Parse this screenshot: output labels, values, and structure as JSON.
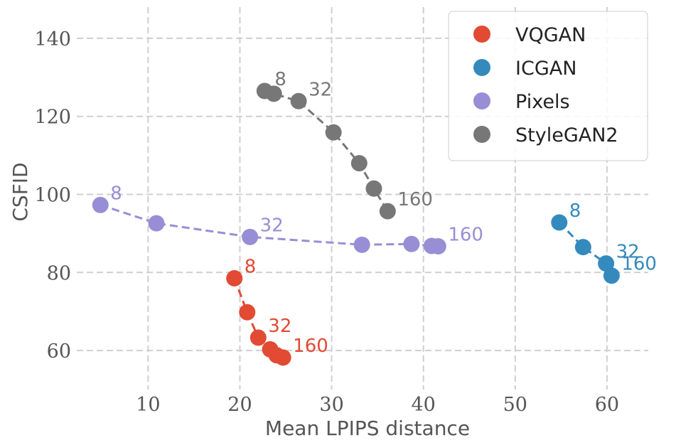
{
  "chart_data": {
    "type": "scatter",
    "title": "",
    "xlabel": "Mean LPIPS distance",
    "ylabel": "CSFID",
    "xlim": [
      3,
      64.5
    ],
    "ylim": [
      50,
      148
    ],
    "xticks": [
      10,
      20,
      30,
      40,
      50,
      60
    ],
    "yticks": [
      60,
      80,
      100,
      120,
      140
    ],
    "grid": true,
    "grid_style": "dashed",
    "legend_position": "top-right",
    "series": [
      {
        "name": "VQGAN",
        "color": "#E24A33",
        "x": [
          19.4,
          20.8,
          22.0,
          23.3,
          24.0,
          24.7
        ],
        "y": [
          78.5,
          69.8,
          63.3,
          60.3,
          58.8,
          58.2
        ],
        "annotations": [
          {
            "index": 0,
            "text": "8"
          },
          {
            "index": 2,
            "text": "32"
          },
          {
            "index": 5,
            "text": "160"
          }
        ]
      },
      {
        "name": "ICGAN",
        "color": "#348ABD",
        "x": [
          54.8,
          57.4,
          59.9,
          60.5
        ],
        "y": [
          92.8,
          86.5,
          82.3,
          79.2
        ],
        "annotations": [
          {
            "index": 0,
            "text": "8"
          },
          {
            "index": 2,
            "text": "32"
          },
          {
            "index": 3,
            "text": "160"
          }
        ]
      },
      {
        "name": "Pixels",
        "color": "#988ED5",
        "x": [
          4.8,
          10.9,
          21.1,
          33.3,
          38.7,
          40.9,
          41.6
        ],
        "y": [
          97.3,
          92.6,
          89.1,
          87.1,
          87.3,
          86.8,
          86.7
        ],
        "annotations": [
          {
            "index": 0,
            "text": "8"
          },
          {
            "index": 2,
            "text": "32"
          },
          {
            "index": 6,
            "text": "160"
          }
        ]
      },
      {
        "name": "StyleGAN2",
        "color": "#777777",
        "x": [
          22.7,
          23.7,
          26.4,
          30.2,
          33.0,
          34.6,
          36.1
        ],
        "y": [
          126.5,
          125.8,
          123.9,
          115.9,
          108.0,
          101.5,
          95.7
        ],
        "annotations": [
          {
            "index": 0,
            "text": "8"
          },
          {
            "index": 2,
            "text": "32"
          },
          {
            "index": 6,
            "text": "160"
          }
        ]
      }
    ]
  }
}
